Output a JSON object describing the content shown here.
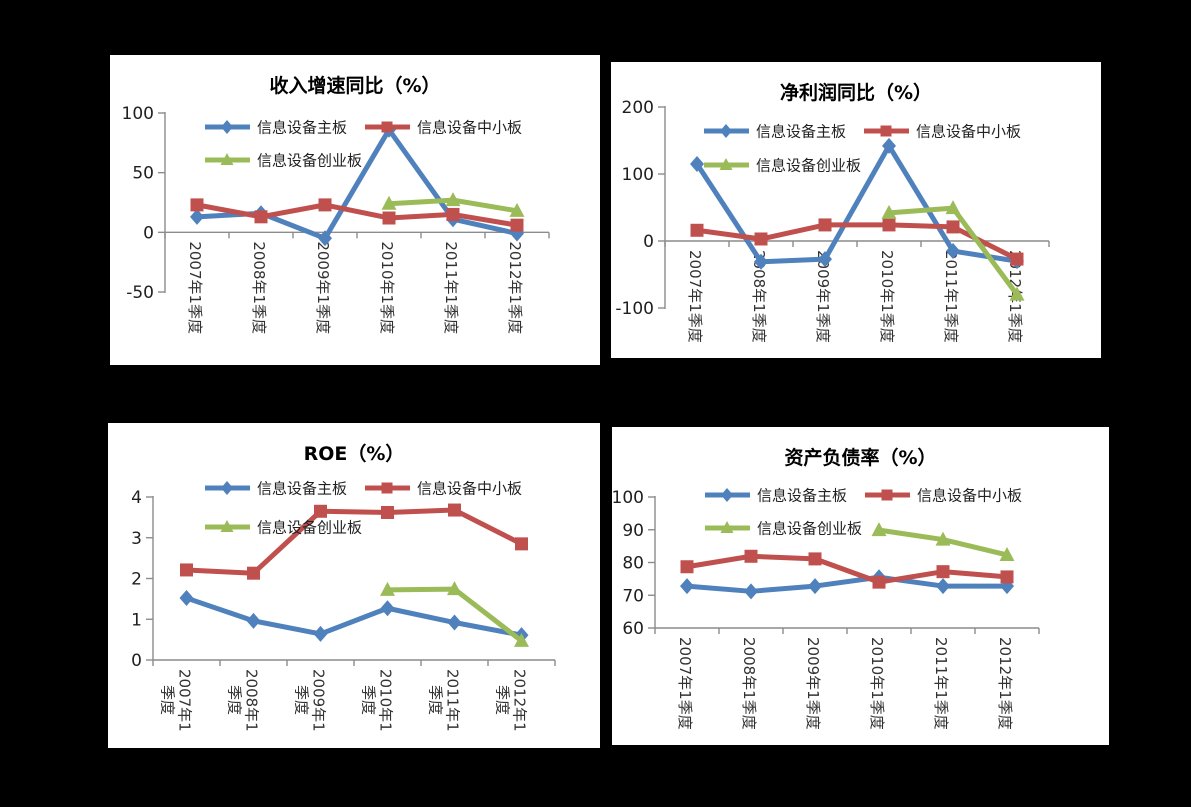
{
  "page": {
    "background_color": "#000000",
    "panel_background_color": "#ffffff"
  },
  "palette": {
    "main_board_blue": "#4F81BD",
    "sme_board_red": "#C0504D",
    "gem_board_green": "#9BBB59",
    "axis_gray": "#8c8c8c",
    "tick_label_color": "#1f1f1f"
  },
  "legend_labels": [
    "信息设备主板",
    "信息设备中小板",
    "信息设备创业板"
  ],
  "categories": [
    "2007年1季度",
    "2008年1季度",
    "2009年1季度",
    "2010年1季度",
    "2011年1季度",
    "2012年1季度"
  ],
  "chart_data": [
    {
      "type": "line",
      "title": "收入增速同比（%）",
      "categories": [
        "2007年1季度",
        "2008年1季度",
        "2009年1季度",
        "2010年1季度",
        "2011年1季度",
        "2012年1季度"
      ],
      "series": [
        {
          "name": "信息设备主板",
          "color": "#4F81BD",
          "marker": "diamond",
          "values": [
            13,
            16,
            -5,
            86,
            11,
            -1
          ]
        },
        {
          "name": "信息设备中小板",
          "color": "#C0504D",
          "marker": "square",
          "values": [
            23,
            13,
            23,
            12,
            15,
            6
          ]
        },
        {
          "name": "信息设备创业板",
          "color": "#9BBB59",
          "marker": "triangle",
          "values": [
            null,
            null,
            null,
            24,
            27,
            18
          ]
        }
      ],
      "ylim": [
        -50,
        100
      ],
      "yticks": [
        100,
        50,
        0,
        -50
      ],
      "axis_cross": 0,
      "grid": false,
      "legend_position": "top-inside"
    },
    {
      "type": "line",
      "title": "净利润同比（%）",
      "categories": [
        "2007年1季度",
        "2008年1季度",
        "2009年1季度",
        "2010年1季度",
        "2011年1季度",
        "2012年1季度"
      ],
      "series": [
        {
          "name": "信息设备主板",
          "color": "#4F81BD",
          "marker": "diamond",
          "values": [
            115,
            -31,
            -27,
            142,
            -15,
            -30
          ]
        },
        {
          "name": "信息设备中小板",
          "color": "#C0504D",
          "marker": "square",
          "values": [
            16,
            3,
            24,
            24,
            21,
            -27
          ]
        },
        {
          "name": "信息设备创业板",
          "color": "#9BBB59",
          "marker": "triangle",
          "values": [
            null,
            null,
            null,
            42,
            49,
            -80
          ]
        }
      ],
      "ylim": [
        -100,
        200
      ],
      "yticks": [
        200,
        100,
        0,
        -100
      ],
      "axis_cross": 0,
      "grid": false,
      "legend_position": "top-inside"
    },
    {
      "type": "line",
      "title": "ROE（%）",
      "categories": [
        "2007年1季度",
        "2008年1季度",
        "2009年1季度",
        "2010年1季度",
        "2011年1季度",
        "2012年1季度"
      ],
      "series": [
        {
          "name": "信息设备主板",
          "color": "#4F81BD",
          "marker": "diamond",
          "values": [
            1.52,
            0.96,
            0.64,
            1.27,
            0.92,
            0.61
          ]
        },
        {
          "name": "信息设备中小板",
          "color": "#C0504D",
          "marker": "square",
          "values": [
            2.21,
            2.13,
            3.65,
            3.62,
            3.68,
            2.85
          ]
        },
        {
          "name": "信息设备创业板",
          "color": "#9BBB59",
          "marker": "triangle",
          "values": [
            null,
            null,
            null,
            1.72,
            1.74,
            0.47
          ]
        }
      ],
      "ylim": [
        0,
        4
      ],
      "yticks": [
        4,
        3,
        2,
        1,
        0
      ],
      "axis_cross": 0,
      "grid": false,
      "legend_position": "top-inside"
    },
    {
      "type": "line",
      "title": "资产负债率（%）",
      "categories": [
        "2007年1季度",
        "2008年1季度",
        "2009年1季度",
        "2010年1季度",
        "2011年1季度",
        "2012年1季度"
      ],
      "series": [
        {
          "name": "信息设备主板",
          "color": "#4F81BD",
          "marker": "diamond",
          "values": [
            72.8,
            71.2,
            72.8,
            75.5,
            72.8,
            72.8
          ]
        },
        {
          "name": "信息设备中小板",
          "color": "#C0504D",
          "marker": "square",
          "values": [
            78.7,
            81.9,
            81.1,
            74.0,
            77.2,
            75.6
          ]
        },
        {
          "name": "信息设备创业板",
          "color": "#9BBB59",
          "marker": "triangle",
          "values": [
            null,
            null,
            null,
            89.9,
            87.0,
            82.3
          ]
        }
      ],
      "ylim": [
        60,
        100
      ],
      "yticks": [
        100,
        90,
        80,
        70,
        60
      ],
      "axis_cross": 60,
      "grid": false,
      "legend_position": "top-inside"
    }
  ]
}
